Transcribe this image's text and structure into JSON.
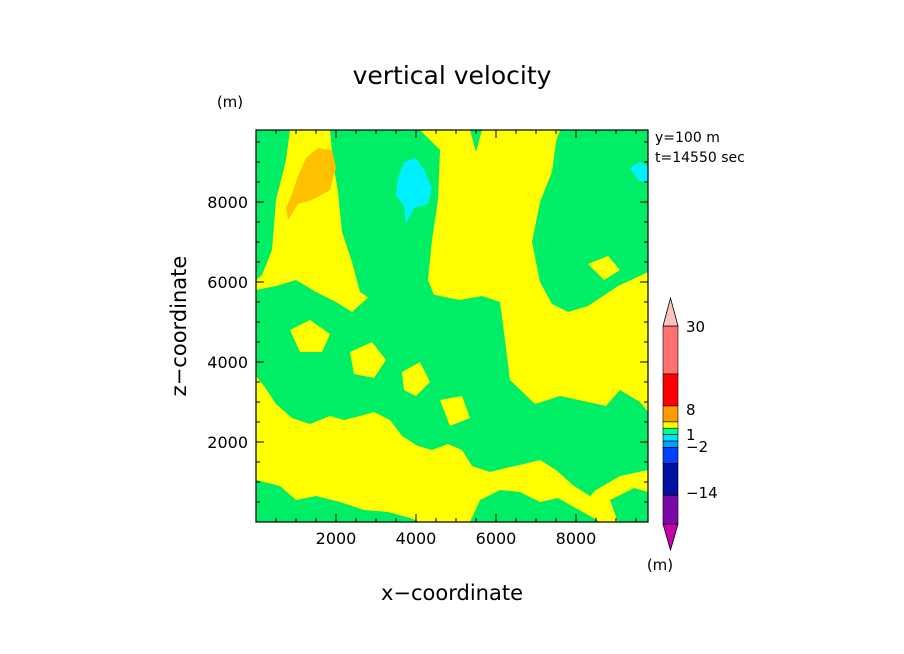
{
  "chart_data": {
    "type": "heatmap",
    "title": "vertical velocity",
    "xlabel": "x−coordinate",
    "ylabel": "z−coordinate",
    "y_unit": "(m)",
    "x_unit": "(m)",
    "annotation_lines": [
      "y=100  m",
      "t=14550  sec"
    ],
    "xlim": [
      0,
      9800
    ],
    "ylim": [
      0,
      9800
    ],
    "xticks": [
      2000,
      4000,
      6000,
      8000
    ],
    "yticks": [
      2000,
      4000,
      6000,
      8000
    ],
    "grid": false,
    "colorbar": {
      "levels": [
        -14,
        -2,
        1,
        8,
        30
      ],
      "tick_labels": [
        "30",
        "8",
        "1",
        "−2",
        "−14"
      ],
      "colors": [
        "#cc00aa",
        "#7a0aa8",
        "#0010a0",
        "#0040ff",
        "#00a0ff",
        "#00e0ff",
        "#00ff80",
        "#ffff00",
        "#ff9a00",
        "#ff0000",
        "#ff7070",
        "#ffc0c0"
      ]
    },
    "background_color": "#ffff00",
    "region_colors": {
      "green": "#00ee66",
      "orange": "#ffc000",
      "cyan": "#00f0ff"
    }
  }
}
